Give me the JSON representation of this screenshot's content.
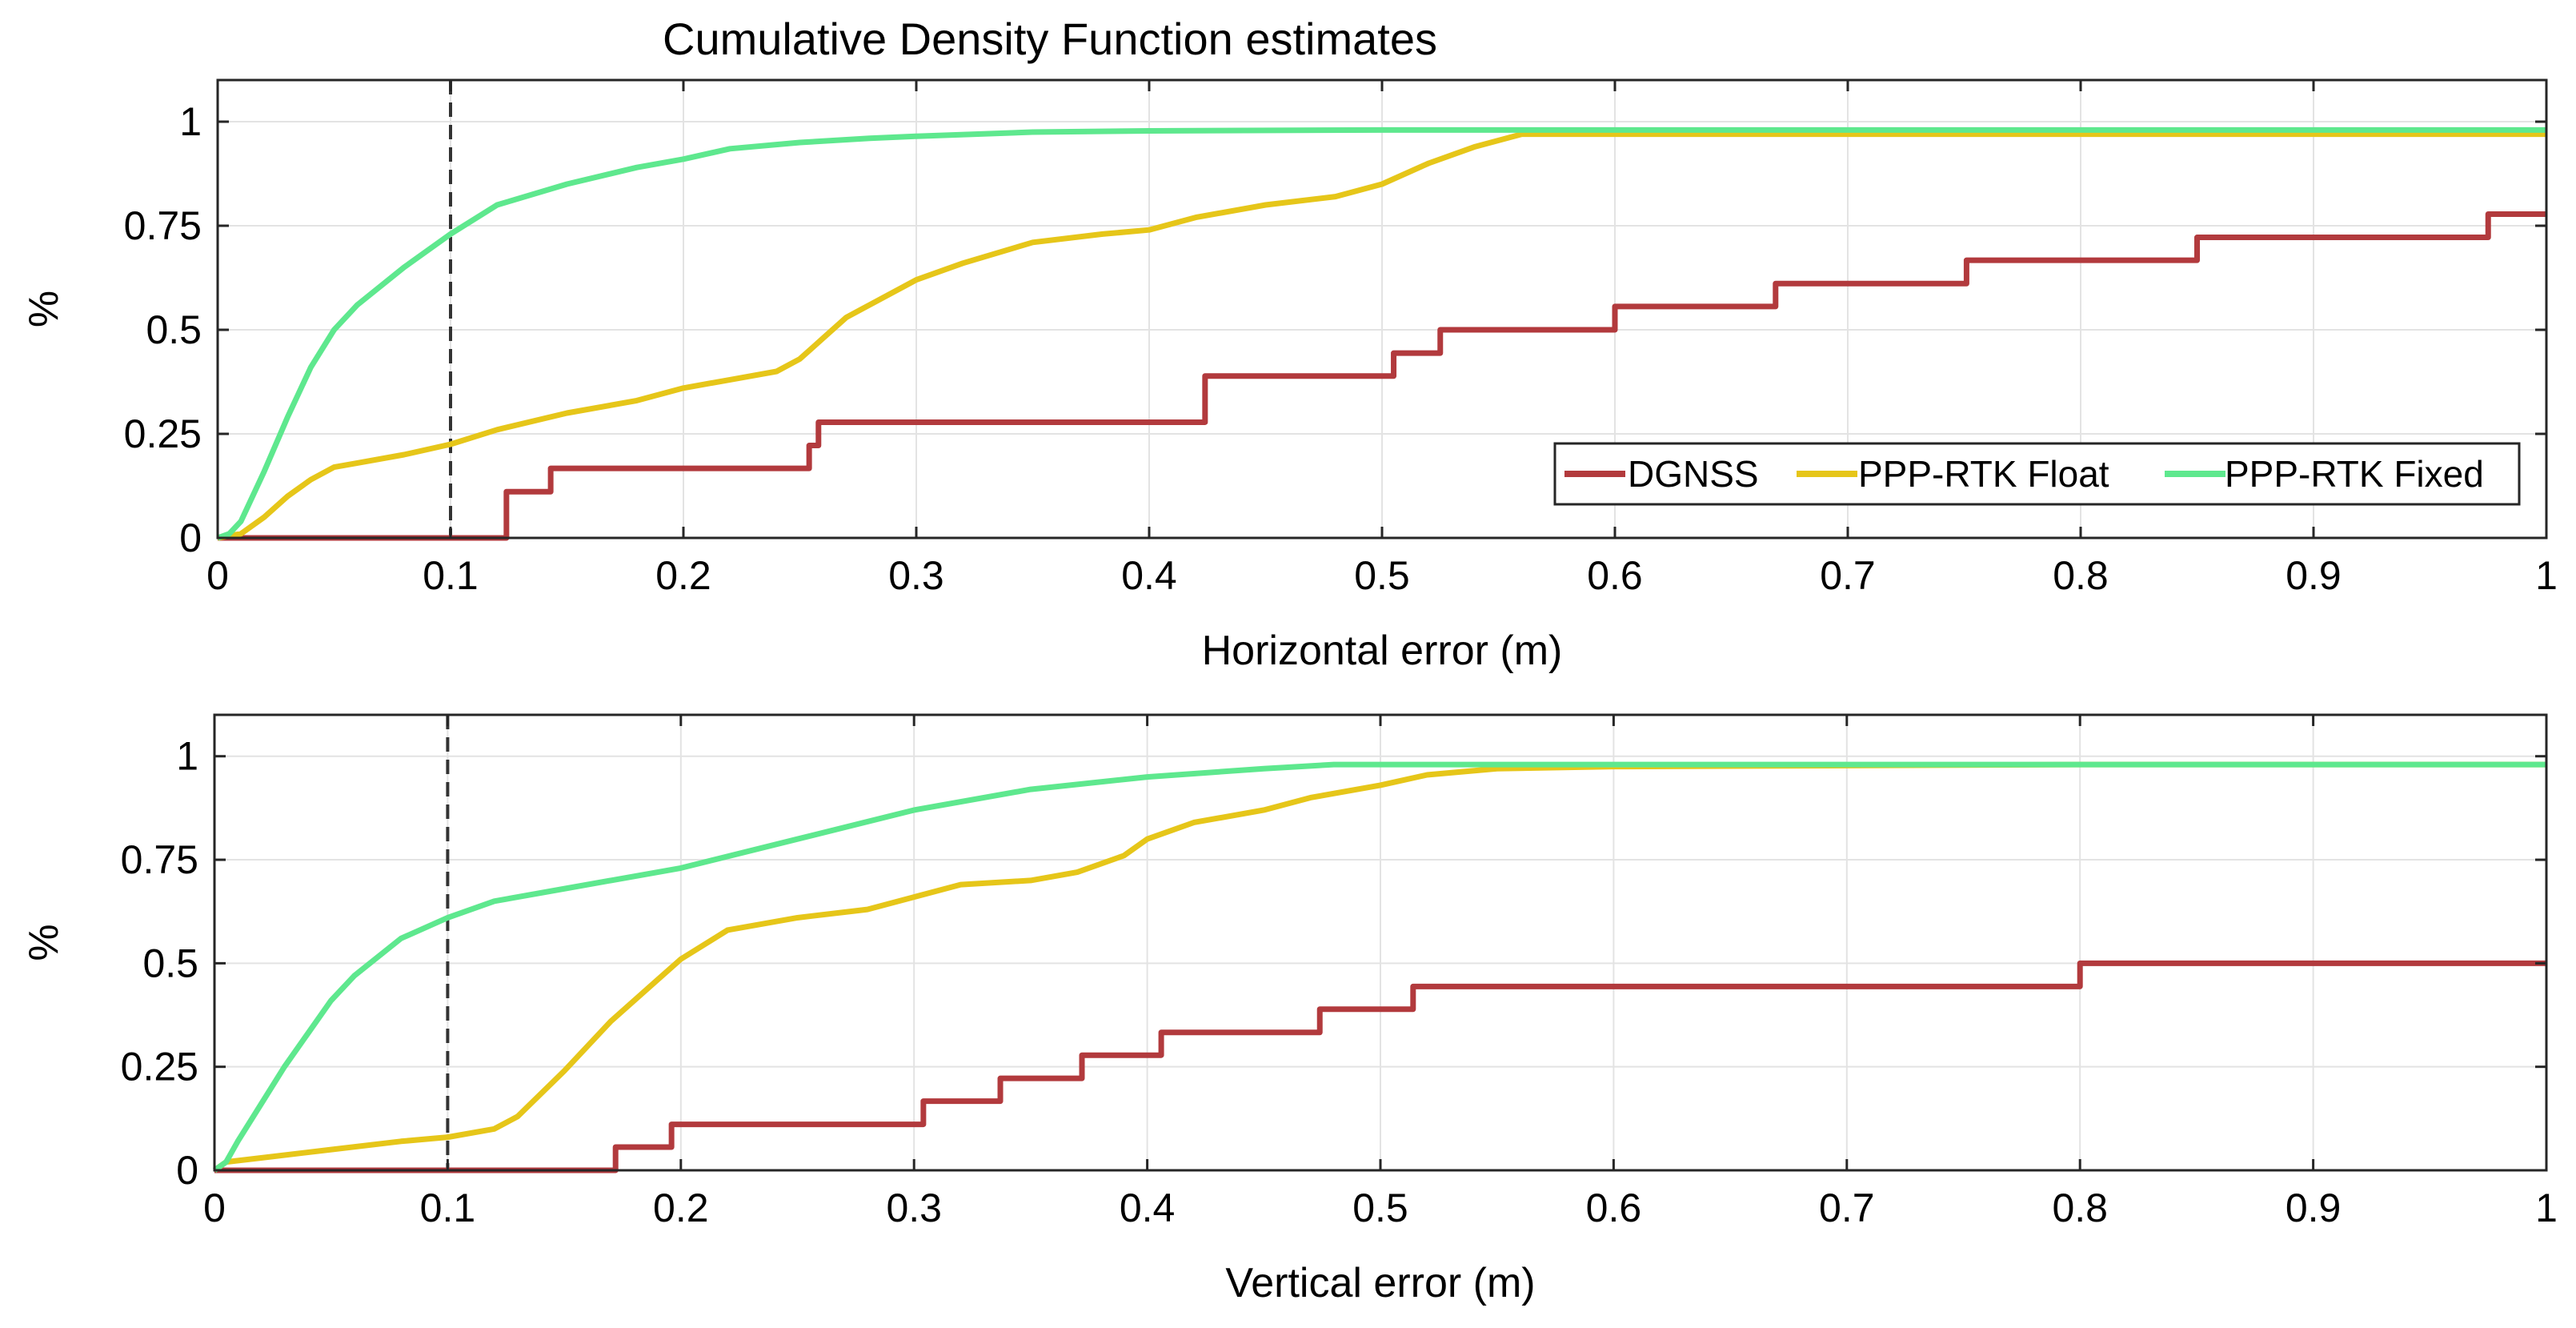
{
  "figure": {
    "title": "Cumulative Density Function estimates"
  },
  "chart_data": [
    {
      "type": "line",
      "step": true,
      "title": "Cumulative Density Function estimates",
      "xlabel": "Horizontal error (m)",
      "ylabel": "%",
      "xlim": [
        0,
        1
      ],
      "ylim": [
        0,
        1.1
      ],
      "xticks": [
        0,
        0.1,
        0.2,
        0.3,
        0.4,
        0.5,
        0.6,
        0.7,
        0.8,
        0.9,
        1
      ],
      "xtick_labels": [
        "0",
        "0.1",
        "0.2",
        "0.3",
        "0.4",
        "0.5",
        "0.6",
        "0.7",
        "0.8",
        "0.9",
        "1"
      ],
      "yticks": [
        0,
        0.25,
        0.5,
        0.75,
        1
      ],
      "ytick_labels": [
        "0",
        "0.25",
        "0.5",
        "0.75",
        "1"
      ],
      "grid": true,
      "legend": {
        "placement": "bottom-right",
        "orientation": "horizontal"
      },
      "reference_line": {
        "x": 0.1,
        "style": "dashed"
      },
      "series": [
        {
          "name": "DGNSS",
          "color": "#b23a3d",
          "style": "step",
          "x": [
            0,
            0.122,
            0.124,
            0.143,
            0.25,
            0.254,
            0.258,
            0.424,
            0.505,
            0.525,
            0.6,
            0.669,
            0.751,
            0.85,
            0.975,
            1.0
          ],
          "y": [
            0,
            0,
            0.111,
            0.167,
            0.167,
            0.222,
            0.278,
            0.389,
            0.444,
            0.5,
            0.556,
            0.611,
            0.667,
            0.722,
            0.778,
            0.778
          ]
        },
        {
          "name": "PPP-RTK Float",
          "color": "#e6c619",
          "style": "line",
          "x": [
            0,
            0.01,
            0.02,
            0.03,
            0.04,
            0.05,
            0.06,
            0.08,
            0.1,
            0.12,
            0.15,
            0.18,
            0.2,
            0.22,
            0.24,
            0.25,
            0.26,
            0.27,
            0.28,
            0.3,
            0.32,
            0.35,
            0.38,
            0.4,
            0.42,
            0.45,
            0.48,
            0.5,
            0.52,
            0.54,
            0.56,
            0.6,
            0.8,
            1.0
          ],
          "y": [
            0,
            0.01,
            0.05,
            0.1,
            0.14,
            0.17,
            0.18,
            0.2,
            0.225,
            0.26,
            0.3,
            0.33,
            0.36,
            0.38,
            0.4,
            0.43,
            0.48,
            0.53,
            0.56,
            0.62,
            0.66,
            0.71,
            0.73,
            0.74,
            0.77,
            0.8,
            0.82,
            0.85,
            0.9,
            0.94,
            0.97,
            0.97,
            0.97,
            0.97
          ]
        },
        {
          "name": "PPP-RTK Fixed",
          "color": "#5ee88e",
          "style": "line",
          "x": [
            0,
            0.005,
            0.01,
            0.02,
            0.03,
            0.04,
            0.05,
            0.06,
            0.08,
            0.1,
            0.12,
            0.15,
            0.18,
            0.2,
            0.22,
            0.25,
            0.28,
            0.3,
            0.35,
            0.4,
            0.5,
            0.6,
            0.8,
            1.0
          ],
          "y": [
            0,
            0.01,
            0.04,
            0.16,
            0.29,
            0.41,
            0.5,
            0.56,
            0.65,
            0.73,
            0.8,
            0.85,
            0.89,
            0.91,
            0.935,
            0.95,
            0.96,
            0.965,
            0.975,
            0.978,
            0.98,
            0.98,
            0.98,
            0.98
          ]
        }
      ]
    },
    {
      "type": "line",
      "step": true,
      "xlabel": "Vertical error (m)",
      "ylabel": "%",
      "xlim": [
        0,
        1
      ],
      "ylim": [
        0,
        1.1
      ],
      "xticks": [
        0,
        0.1,
        0.2,
        0.3,
        0.4,
        0.5,
        0.6,
        0.7,
        0.8,
        0.9,
        1
      ],
      "xtick_labels": [
        "0",
        "0.1",
        "0.2",
        "0.3",
        "0.4",
        "0.5",
        "0.6",
        "0.7",
        "0.8",
        "0.9",
        "1"
      ],
      "yticks": [
        0,
        0.25,
        0.5,
        0.75,
        1
      ],
      "ytick_labels": [
        "0",
        "0.25",
        "0.5",
        "0.75",
        "1"
      ],
      "grid": true,
      "reference_line": {
        "x": 0.1,
        "style": "dashed"
      },
      "series": [
        {
          "name": "DGNSS",
          "color": "#b23a3d",
          "style": "step",
          "x": [
            0,
            0.172,
            0.196,
            0.304,
            0.337,
            0.372,
            0.406,
            0.474,
            0.514,
            0.8,
            1.0
          ],
          "y": [
            0,
            0.056,
            0.111,
            0.167,
            0.222,
            0.278,
            0.333,
            0.389,
            0.444,
            0.5,
            0.5
          ]
        },
        {
          "name": "PPP-RTK Float",
          "color": "#e6c619",
          "style": "line",
          "x": [
            0,
            0.005,
            0.02,
            0.05,
            0.08,
            0.1,
            0.12,
            0.13,
            0.15,
            0.17,
            0.19,
            0.2,
            0.22,
            0.25,
            0.28,
            0.3,
            0.32,
            0.35,
            0.37,
            0.39,
            0.4,
            0.42,
            0.45,
            0.47,
            0.5,
            0.52,
            0.55,
            0.6,
            0.8,
            1.0
          ],
          "y": [
            0,
            0.02,
            0.03,
            0.05,
            0.07,
            0.08,
            0.1,
            0.13,
            0.24,
            0.36,
            0.46,
            0.51,
            0.58,
            0.61,
            0.63,
            0.66,
            0.69,
            0.7,
            0.72,
            0.76,
            0.8,
            0.84,
            0.87,
            0.9,
            0.93,
            0.955,
            0.97,
            0.975,
            0.98,
            0.98
          ]
        },
        {
          "name": "PPP-RTK Fixed",
          "color": "#5ee88e",
          "style": "line",
          "x": [
            0,
            0.005,
            0.01,
            0.02,
            0.03,
            0.04,
            0.05,
            0.06,
            0.08,
            0.1,
            0.12,
            0.15,
            0.2,
            0.25,
            0.3,
            0.35,
            0.4,
            0.45,
            0.48,
            0.5,
            0.6,
            0.8,
            1.0
          ],
          "y": [
            0,
            0.02,
            0.07,
            0.16,
            0.25,
            0.33,
            0.41,
            0.47,
            0.56,
            0.61,
            0.65,
            0.68,
            0.73,
            0.8,
            0.87,
            0.92,
            0.95,
            0.97,
            0.98,
            0.98,
            0.98,
            0.98,
            0.98
          ]
        }
      ]
    }
  ]
}
